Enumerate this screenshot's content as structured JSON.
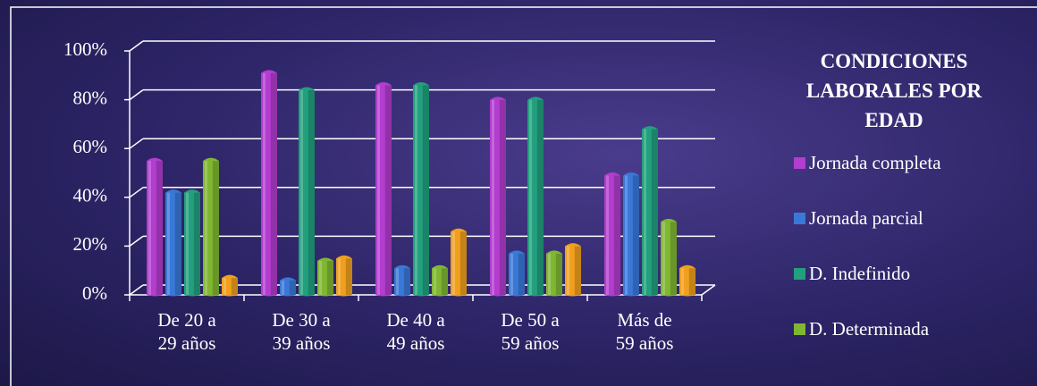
{
  "chart_data": {
    "type": "bar",
    "title": "CONDICIONES LABORALES POR EDAD",
    "categories": [
      "De 20 a 29 años",
      "De 30 a 39 años",
      "De 40 a 49 años",
      "De 50 a 59 años",
      "Más de 59 años"
    ],
    "series": [
      {
        "name": "Jornada completa",
        "color": "#b23dcf",
        "values": [
          56,
          92,
          87,
          81,
          50
        ]
      },
      {
        "name": "Jornada parcial",
        "color": "#3a78d8",
        "values": [
          43,
          7,
          12,
          18,
          50
        ]
      },
      {
        "name": "D. Indefinido",
        "color": "#22a07e",
        "values": [
          43,
          85,
          87,
          81,
          69
        ]
      },
      {
        "name": "D. Determinada",
        "color": "#80b732",
        "values": [
          56,
          15,
          12,
          18,
          31
        ]
      },
      {
        "color": "#f0a01e",
        "values": [
          8,
          16,
          27,
          21,
          12
        ]
      }
    ],
    "ylim": [
      0,
      100
    ],
    "yticks": [
      {
        "value": 0,
        "label": "0%"
      },
      {
        "value": 20,
        "label": "20%"
      },
      {
        "value": 40,
        "label": "40%"
      },
      {
        "value": 60,
        "label": "60%"
      },
      {
        "value": 80,
        "label": "80%"
      },
      {
        "value": 100,
        "label": "100%"
      }
    ],
    "grid": true
  }
}
